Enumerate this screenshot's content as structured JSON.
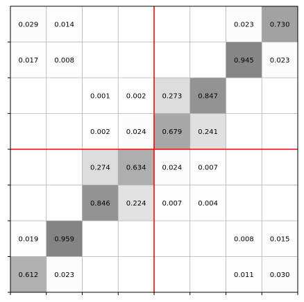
{
  "chart_data": {
    "type": "heatmap",
    "title": "",
    "xlabel": "",
    "ylabel": "",
    "rows": 8,
    "cols": 8,
    "grid": true,
    "axis_ticks": "unlabeled",
    "matrix": [
      [
        0.029,
        0.014,
        null,
        null,
        null,
        null,
        0.023,
        0.73
      ],
      [
        0.017,
        0.008,
        null,
        null,
        null,
        null,
        0.945,
        0.023
      ],
      [
        null,
        null,
        0.001,
        0.002,
        0.273,
        0.847,
        null,
        null
      ],
      [
        null,
        null,
        0.002,
        0.024,
        0.679,
        0.241,
        null,
        null
      ],
      [
        null,
        null,
        0.274,
        0.634,
        0.024,
        0.007,
        null,
        null
      ],
      [
        null,
        null,
        0.846,
        0.224,
        0.007,
        0.004,
        null,
        null
      ],
      [
        0.019,
        0.959,
        null,
        null,
        null,
        null,
        0.008,
        0.015
      ],
      [
        0.612,
        0.023,
        null,
        null,
        null,
        null,
        0.011,
        0.03
      ]
    ],
    "value_format": "3 decimals",
    "color_scale": {
      "low": "#ffffff",
      "high": "#7f7f7f",
      "min": 0,
      "max": 1
    },
    "divider_lines": {
      "color": "#ff0000",
      "vertical_after_col": 4,
      "horizontal_after_row": 4
    }
  }
}
